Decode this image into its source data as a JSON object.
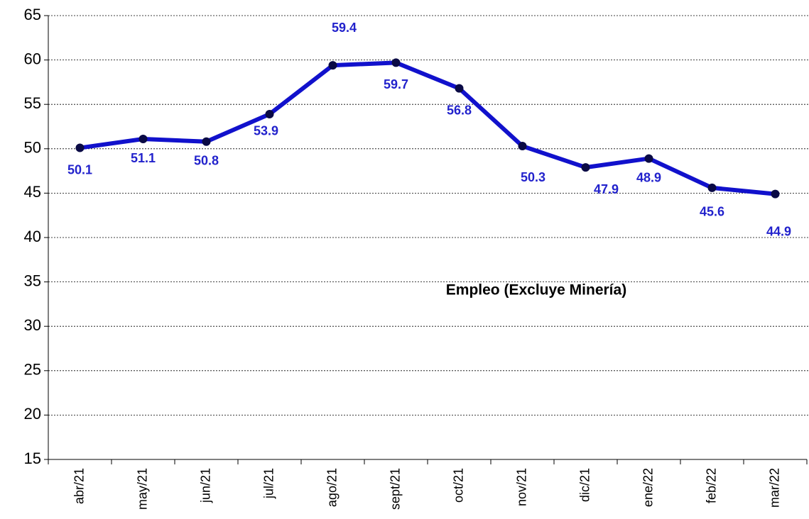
{
  "chart_data": {
    "type": "line",
    "annotation": "Empleo (Excluye Minería)",
    "categories": [
      "abr/21",
      "may/21",
      "jun/21",
      "jul/21",
      "ago/21",
      "sept/21",
      "oct/21",
      "nov/21",
      "dic/21",
      "ene/22",
      "feb/22",
      "mar/22"
    ],
    "series": [
      {
        "name": "Empleo (Excluye Minería)",
        "color": "#1111cc",
        "values": [
          50.1,
          51.1,
          50.8,
          53.9,
          59.4,
          59.7,
          56.8,
          50.3,
          47.9,
          48.9,
          45.6,
          44.9
        ]
      }
    ],
    "ylim": [
      15,
      65
    ],
    "yticks": [
      15,
      20,
      25,
      30,
      35,
      40,
      45,
      50,
      55,
      60,
      65
    ],
    "grid": true
  }
}
